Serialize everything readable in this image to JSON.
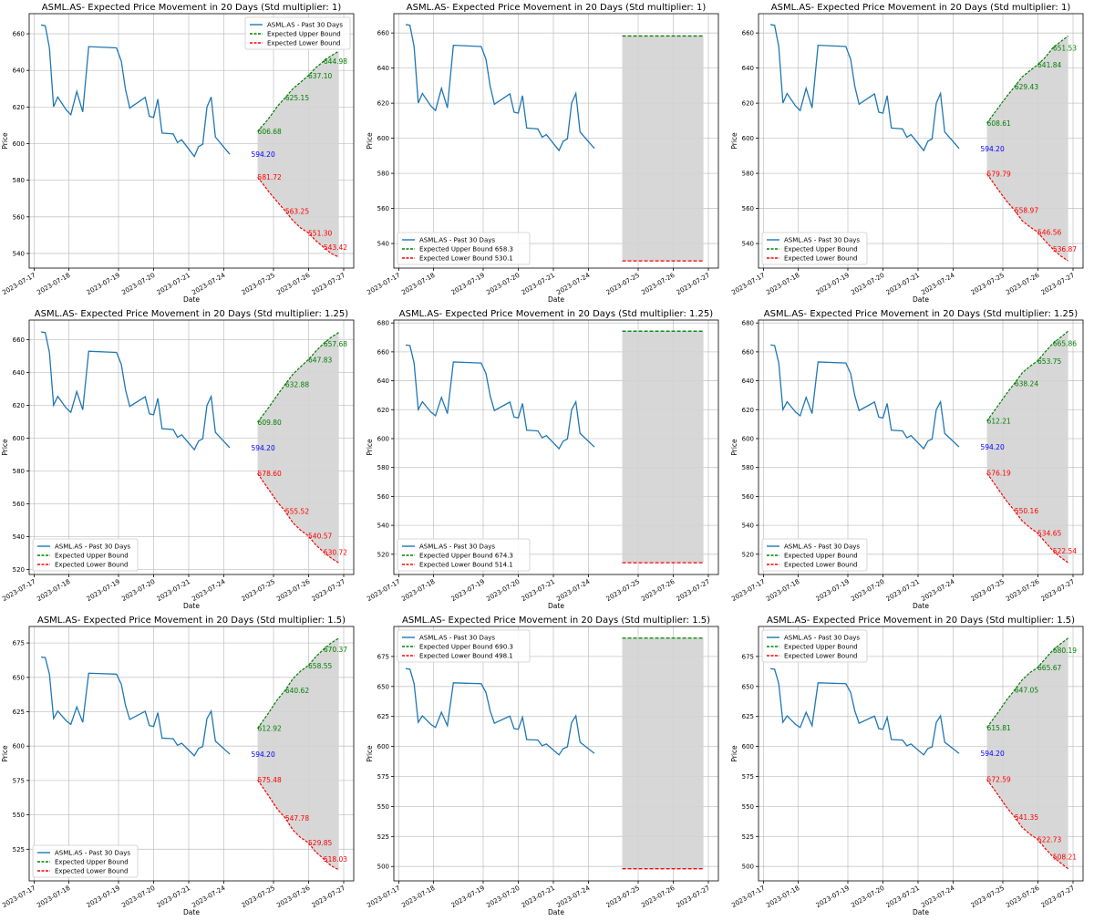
{
  "figure": {
    "layout": {
      "rows": 3,
      "cols": 3
    },
    "colors": {
      "history": "#1f77b4",
      "upper": "#008000",
      "lower": "#ff0000",
      "last_price": "#0000ff",
      "fill": "#d3d3d3",
      "grid": "#b0b0b0"
    }
  },
  "chart_data": [
    {
      "type": "line",
      "title": "ASML.AS- Expected Price Movement in 20 Days (Std multiplier: 1)",
      "xlabel": "Date",
      "ylabel": "Price",
      "x_ticks": [
        "2023-07-17",
        "2023-07-18",
        "2023-07-19",
        "2023-07-20",
        "2023-07-21",
        "2023-07-24",
        "2023-07-25",
        "2023-07-26",
        "2023-07-27"
      ],
      "y_ticks": [
        540,
        560,
        580,
        600,
        620,
        640,
        660
      ],
      "ylim": [
        532,
        671
      ],
      "grid": true,
      "legend_position": "upper right",
      "series": [
        {
          "name": "ASML.AS - Past 30 Days",
          "style": "solid"
        },
        {
          "name": "Expected Upper Bound",
          "style": "dashed",
          "curve": [
            606.68,
            613.5,
            620.5,
            625.15,
            630,
            633.5,
            637.1,
            641.5,
            644.98,
            648,
            650.5
          ]
        },
        {
          "name": "Expected Lower Bound",
          "style": "dashed",
          "curve": [
            581.72,
            574,
            568,
            563.25,
            558,
            554,
            551.3,
            547,
            543.42,
            540,
            538
          ]
        }
      ],
      "mode": "curve",
      "last_price": "594.20",
      "annotations_upper": [
        "606.68",
        "625.15",
        "637.10",
        "644.98"
      ],
      "annotations_lower": [
        "581.72",
        "563.25",
        "551.30",
        "543.42"
      ]
    },
    {
      "type": "line",
      "title": "ASML.AS- Expected Price Movement in 20 Days (Std multiplier: 1)",
      "xlabel": "Date",
      "ylabel": "Price",
      "x_ticks": [
        "2023-07-17",
        "2023-07-18",
        "2023-07-19",
        "2023-07-20",
        "2023-07-21",
        "2023-07-24",
        "2023-07-25",
        "2023-07-26",
        "2023-07-27"
      ],
      "y_ticks": [
        540,
        560,
        580,
        600,
        620,
        640,
        660
      ],
      "ylim": [
        526,
        671
      ],
      "grid": true,
      "legend_position": "lower left",
      "series": [
        {
          "name": "ASML.AS - Past 30 Days",
          "style": "solid"
        },
        {
          "name": "Expected Upper Bound 658.3",
          "style": "dashed",
          "value": 658.3
        },
        {
          "name": "Expected Lower Bound 530.1",
          "style": "dashed",
          "value": 530.1
        }
      ],
      "mode": "flat"
    },
    {
      "type": "line",
      "title": "ASML.AS- Expected Price Movement in 20 Days (Std multiplier: 1)",
      "xlabel": "Date",
      "ylabel": "Price",
      "x_ticks": [
        "2023-07-17",
        "2023-07-18",
        "2023-07-19",
        "2023-07-20",
        "2023-07-21",
        "2023-07-24",
        "2023-07-25",
        "2023-07-26",
        "2023-07-27"
      ],
      "y_ticks": [
        540,
        560,
        580,
        600,
        620,
        640,
        660
      ],
      "ylim": [
        526,
        671
      ],
      "grid": true,
      "legend_position": "lower left",
      "series": [
        {
          "name": "ASML.AS - Past 30 Days",
          "style": "solid"
        },
        {
          "name": "Expected Upper Bound",
          "style": "dashed",
          "curve": [
            608.61,
            617,
            624,
            629.43,
            635,
            638.5,
            641.84,
            646,
            651.53,
            655,
            658.3
          ]
        },
        {
          "name": "Expected Lower Bound",
          "style": "dashed",
          "curve": [
            579.79,
            571,
            564,
            558.97,
            553,
            549.5,
            546.56,
            541.5,
            536.87,
            533,
            530.1
          ]
        }
      ],
      "mode": "curve",
      "last_price": "594.20",
      "annotations_upper": [
        "608.61",
        "629.43",
        "641.84",
        "651.53"
      ],
      "annotations_lower": [
        "579.79",
        "558.97",
        "546.56",
        "536.87"
      ]
    },
    {
      "type": "line",
      "title": "ASML.AS- Expected Price Movement in 20 Days (Std multiplier: 1.25)",
      "xlabel": "Date",
      "ylabel": "Price",
      "x_ticks": [
        "2023-07-17",
        "2023-07-18",
        "2023-07-19",
        "2023-07-20",
        "2023-07-21",
        "2023-07-24",
        "2023-07-25",
        "2023-07-26",
        "2023-07-27"
      ],
      "y_ticks": [
        520,
        540,
        560,
        580,
        600,
        620,
        640,
        660
      ],
      "ylim": [
        517,
        672
      ],
      "grid": true,
      "legend_position": "lower left",
      "series": [
        {
          "name": "ASML.AS - Past 30 Days",
          "style": "solid"
        },
        {
          "name": "Expected Upper Bound",
          "style": "dashed",
          "curve": [
            609.8,
            618.5,
            626.5,
            632.88,
            639,
            643.5,
            647.83,
            653,
            657.68,
            661.5,
            664.5
          ]
        },
        {
          "name": "Expected Lower Bound",
          "style": "dashed",
          "curve": [
            578.6,
            569,
            561,
            555.52,
            548.5,
            544,
            540.57,
            535,
            530.72,
            527,
            524
          ]
        }
      ],
      "mode": "curve",
      "last_price": "594.20",
      "annotations_upper": [
        "609.80",
        "632.88",
        "647.83",
        "657.68"
      ],
      "annotations_lower": [
        "578.60",
        "555.52",
        "540.57",
        "530.72"
      ]
    },
    {
      "type": "line",
      "title": "ASML.AS- Expected Price Movement in 20 Days (Std multiplier: 1.25)",
      "xlabel": "Date",
      "ylabel": "Price",
      "x_ticks": [
        "2023-07-17",
        "2023-07-18",
        "2023-07-19",
        "2023-07-20",
        "2023-07-21",
        "2023-07-24",
        "2023-07-25",
        "2023-07-26",
        "2023-07-27"
      ],
      "y_ticks": [
        520,
        540,
        560,
        580,
        600,
        620,
        640,
        660,
        680
      ],
      "ylim": [
        506,
        682
      ],
      "grid": true,
      "legend_position": "lower left",
      "series": [
        {
          "name": "ASML.AS - Past 30 Days",
          "style": "solid"
        },
        {
          "name": "Expected Upper Bound 674.3",
          "style": "dashed",
          "value": 674.3
        },
        {
          "name": "Expected Lower Bound 514.1",
          "style": "dashed",
          "value": 514.1
        }
      ],
      "mode": "flat"
    },
    {
      "type": "line",
      "title": "ASML.AS- Expected Price Movement in 20 Days (Std multiplier: 1.25)",
      "xlabel": "Date",
      "ylabel": "Price",
      "x_ticks": [
        "2023-07-17",
        "2023-07-18",
        "2023-07-19",
        "2023-07-20",
        "2023-07-21",
        "2023-07-24",
        "2023-07-25",
        "2023-07-26",
        "2023-07-27"
      ],
      "y_ticks": [
        520,
        540,
        560,
        580,
        600,
        620,
        640,
        660,
        680
      ],
      "ylim": [
        506,
        682
      ],
      "grid": true,
      "legend_position": "lower left",
      "series": [
        {
          "name": "ASML.AS - Past 30 Days",
          "style": "solid"
        },
        {
          "name": "Expected Upper Bound",
          "style": "dashed",
          "curve": [
            612.21,
            622.5,
            631.5,
            638.24,
            645.5,
            650,
            653.75,
            660,
            665.86,
            670,
            674.3
          ]
        },
        {
          "name": "Expected Lower Bound",
          "style": "dashed",
          "curve": [
            576.19,
            565.5,
            556.5,
            550.16,
            543,
            538.5,
            534.65,
            528.5,
            522.54,
            518,
            514.1
          ]
        }
      ],
      "mode": "curve",
      "last_price": "594.20",
      "annotations_upper": [
        "612.21",
        "638.24",
        "653.75",
        "665.86"
      ],
      "annotations_lower": [
        "576.19",
        "550.16",
        "534.65",
        "522.54"
      ]
    },
    {
      "type": "line",
      "title": "ASML.AS- Expected Price Movement in 20 Days (Std multiplier: 1.5)",
      "xlabel": "Date",
      "ylabel": "Price",
      "x_ticks": [
        "2023-07-17",
        "2023-07-18",
        "2023-07-19",
        "2023-07-20",
        "2023-07-21",
        "2023-07-24",
        "2023-07-25",
        "2023-07-26",
        "2023-07-27"
      ],
      "y_ticks": [
        525,
        550,
        575,
        600,
        625,
        650,
        675
      ],
      "ylim": [
        502,
        687
      ],
      "grid": true,
      "legend_position": "lower left",
      "series": [
        {
          "name": "ASML.AS - Past 30 Days",
          "style": "solid"
        },
        {
          "name": "Expected Upper Bound",
          "style": "dashed",
          "curve": [
            612.92,
            624,
            634,
            640.62,
            649,
            654.5,
            658.55,
            665,
            670.37,
            675,
            678.5
          ]
        },
        {
          "name": "Expected Lower Bound",
          "style": "dashed",
          "curve": [
            575.48,
            564,
            554,
            547.78,
            539,
            533.5,
            529.85,
            523,
            518.03,
            513,
            510
          ]
        }
      ],
      "mode": "curve",
      "last_price": "594.20",
      "annotations_upper": [
        "612.92",
        "640.62",
        "658.55",
        "670.37"
      ],
      "annotations_lower": [
        "575.48",
        "547.78",
        "529.85",
        "518.03"
      ]
    },
    {
      "type": "line",
      "title": "ASML.AS- Expected Price Movement in 20 Days (Std multiplier: 1.5)",
      "xlabel": "Date",
      "ylabel": "Price",
      "x_ticks": [
        "2023-07-17",
        "2023-07-18",
        "2023-07-19",
        "2023-07-20",
        "2023-07-21",
        "2023-07-24",
        "2023-07-25",
        "2023-07-26",
        "2023-07-27"
      ],
      "y_ticks": [
        500,
        525,
        550,
        575,
        600,
        625,
        650,
        675
      ],
      "ylim": [
        488,
        700
      ],
      "grid": true,
      "legend_position": "upper left",
      "series": [
        {
          "name": "ASML.AS - Past 30 Days",
          "style": "solid"
        },
        {
          "name": "Expected Upper Bound 690.3",
          "style": "dashed",
          "value": 690.3
        },
        {
          "name": "Expected Lower Bound 498.1",
          "style": "dashed",
          "value": 498.1
        }
      ],
      "mode": "flat"
    },
    {
      "type": "line",
      "title": "ASML.AS- Expected Price Movement in 20 Days (Std multiplier: 1.5)",
      "xlabel": "Date",
      "ylabel": "Price",
      "x_ticks": [
        "2023-07-17",
        "2023-07-18",
        "2023-07-19",
        "2023-07-20",
        "2023-07-21",
        "2023-07-24",
        "2023-07-25",
        "2023-07-26",
        "2023-07-27"
      ],
      "y_ticks": [
        500,
        525,
        550,
        575,
        600,
        625,
        650,
        675
      ],
      "ylim": [
        488,
        700
      ],
      "grid": true,
      "legend_position": "upper left",
      "series": [
        {
          "name": "ASML.AS - Past 30 Days",
          "style": "solid"
        },
        {
          "name": "Expected Upper Bound",
          "style": "dashed",
          "curve": [
            615.81,
            628,
            639,
            647.05,
            655.5,
            661.5,
            665.67,
            673,
            680.19,
            685.5,
            690.3
          ]
        },
        {
          "name": "Expected Lower Bound",
          "style": "dashed",
          "curve": [
            572.59,
            560,
            549,
            541.35,
            532.5,
            527,
            522.73,
            515,
            508.21,
            503,
            498.1
          ]
        }
      ],
      "mode": "curve",
      "last_price": "594.20",
      "annotations_upper": [
        "615.81",
        "647.05",
        "665.67",
        "680.19"
      ],
      "annotations_lower": [
        "572.59",
        "541.35",
        "522.73",
        "508.21"
      ]
    }
  ],
  "history": {
    "label": "ASML.AS - Past 30 Days",
    "x": [
      0.25,
      0.4,
      0.55,
      0.7,
      0.85,
      1.0,
      1.15,
      1.3,
      1.45,
      1.6,
      1.75,
      2.45,
      2.6,
      2.75,
      2.9,
      3.45,
      3.6,
      3.75,
      3.9,
      4.05,
      4.3,
      4.45,
      4.6,
      4.75,
      5.2,
      5.35,
      5.5,
      5.65,
      5.8,
      5.95,
      6.4,
      6.55,
      6.7,
      6.85
    ],
    "y": [
      664.8,
      664.4,
      652.3,
      620.1,
      625.5,
      622,
      618.5,
      615.8,
      628.5,
      617.3,
      653,
      652.3,
      645,
      629.5,
      619.4,
      625.3,
      614.9,
      614.3,
      624.3,
      605.8,
      605.5,
      605.3,
      600.6,
      602.1,
      593,
      598.3,
      599.7,
      620,
      625.5,
      603.6,
      594.2,
      594.2,
      594.2,
      594.2
    ]
  }
}
